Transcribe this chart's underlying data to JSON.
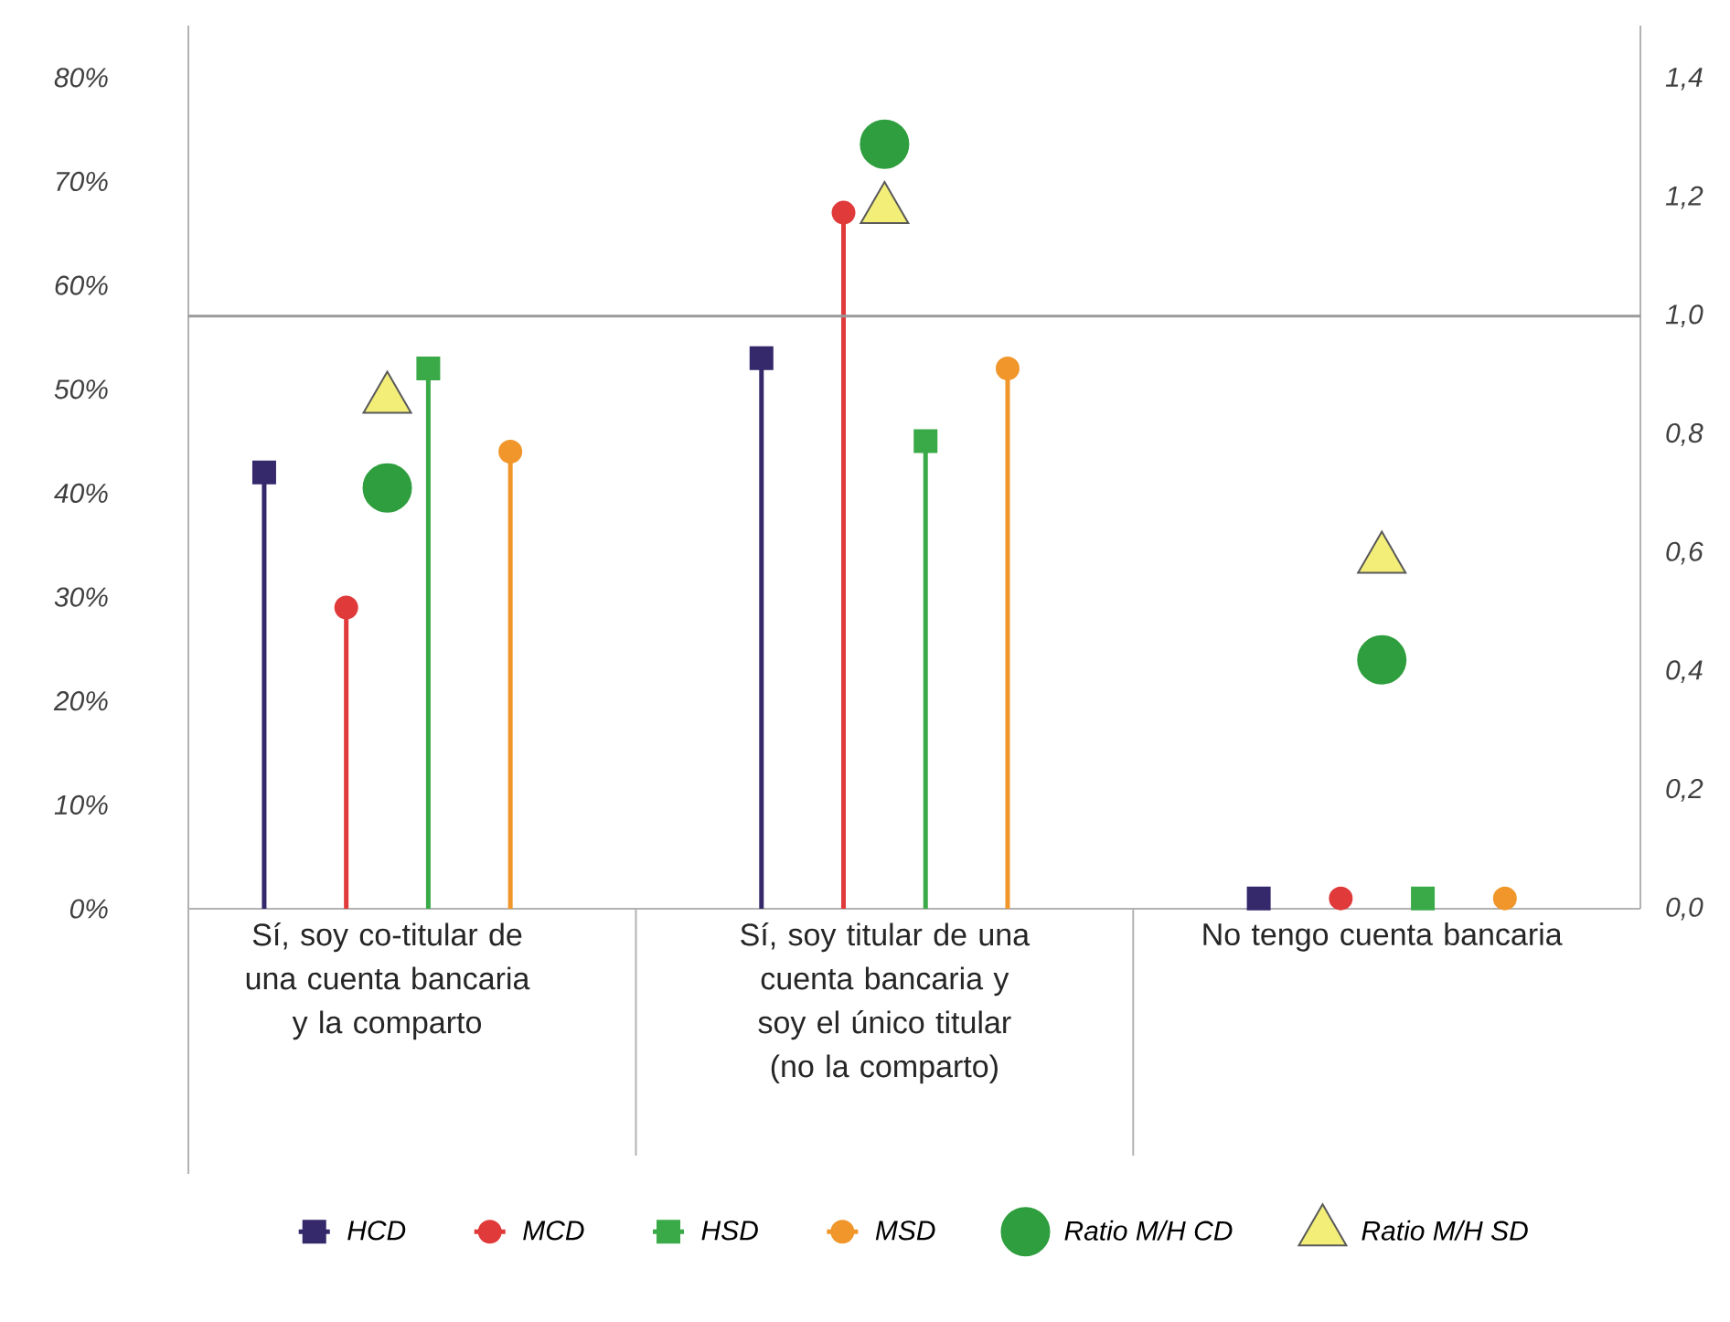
{
  "chart_data": {
    "type": "lollipop",
    "categories": [
      "Sí, soy co-titular de una cuenta bancaria y la comparto",
      "Sí, soy titular de una cuenta bancaria y soy el único titular (no la comparto)",
      "No tengo cuenta bancaria"
    ],
    "ylim": [
      0,
      85
    ],
    "yticks": [
      {
        "value": 0,
        "label": "0%"
      },
      {
        "value": 10,
        "label": "10%"
      },
      {
        "value": 20,
        "label": "20%"
      },
      {
        "value": 30,
        "label": "30%"
      },
      {
        "value": 40,
        "label": "40%"
      },
      {
        "value": 50,
        "label": "50%"
      },
      {
        "value": 60,
        "label": "60%"
      },
      {
        "value": 70,
        "label": "70%"
      },
      {
        "value": 80,
        "label": "80%"
      }
    ],
    "y2lim": [
      0,
      1.49
    ],
    "y2ticks": [
      {
        "value": 0,
        "label": "0,0"
      },
      {
        "value": 0.2,
        "label": "0,2"
      },
      {
        "value": 0.4,
        "label": "0,4"
      },
      {
        "value": 0.6,
        "label": "0,6"
      },
      {
        "value": 0.8,
        "label": "0,8"
      },
      {
        "value": 1,
        "label": "1,0"
      },
      {
        "value": 1.2,
        "label": "1,2"
      },
      {
        "value": 1.4,
        "label": "1,4"
      }
    ],
    "legend": "bottom",
    "ref_lines": [
      {
        "axis": "y2",
        "value": 1,
        "color": "#9a9a9a"
      }
    ],
    "series": [
      {
        "name": "HCD",
        "color": "#35286b",
        "marker": "square",
        "values": [
          42,
          53,
          1
        ]
      },
      {
        "name": "MCD",
        "color": "#e03a3a",
        "marker": "circle",
        "values": [
          29,
          67,
          1
        ]
      },
      {
        "name": "HSD",
        "color": "#3aaa48",
        "marker": "square",
        "values": [
          52,
          45,
          1
        ]
      },
      {
        "name": "MSD",
        "color": "#f0962a",
        "marker": "circle",
        "values": [
          44,
          52,
          1
        ]
      },
      {
        "name": "Ratio M/H CD",
        "type": "scatter",
        "axis": "y2",
        "color": "#2e9e3e",
        "marker": "circle",
        "values": [
          0.71,
          1.29,
          0.42
        ]
      },
      {
        "name": "Ratio M/H SD",
        "type": "scatter",
        "axis": "y2",
        "color": "#f2ee78",
        "marker": "triangle",
        "values": [
          0.86,
          1.18,
          0.59
        ]
      }
    ]
  }
}
